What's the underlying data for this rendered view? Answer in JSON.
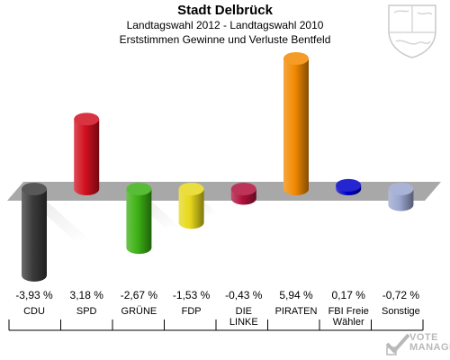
{
  "header": {
    "title": "Stadt Delbrück",
    "subtitle1": "Landtagswahl 2012 - Landtagswahl 2010",
    "subtitle2": "Erststimmen Gewinne und Verluste Bentfeld"
  },
  "branding": {
    "coat_of_arms_icon": "nrw-coat-of-arms-icon",
    "logo_line1": "VOTE",
    "logo_line2": "MANAGER"
  },
  "chart_data": {
    "type": "bar",
    "title": "Stadt Delbrück",
    "categories": [
      "CDU",
      "SPD",
      "GRÜNE",
      "FDP",
      "DIE LINKE",
      "PIRATEN",
      "FBI Freie Wähler",
      "Sonstige"
    ],
    "category_lines": [
      [
        "CDU"
      ],
      [
        "SPD"
      ],
      [
        "GRÜNE"
      ],
      [
        "FDP"
      ],
      [
        "DIE",
        "LINKE"
      ],
      [
        "PIRATEN"
      ],
      [
        "FBI Freie",
        "Wähler"
      ],
      [
        "Sonstige"
      ]
    ],
    "values": [
      -3.93,
      3.18,
      -2.67,
      -1.53,
      -0.43,
      5.94,
      0.17,
      -0.72
    ],
    "value_labels": [
      "-3,93 %",
      "3,18 %",
      "-2,67 %",
      "-1,53 %",
      "-0,43 %",
      "5,94 %",
      "0,17 %",
      "-0,72 %"
    ],
    "colors": [
      "#3a3a3a",
      "#d10f1f",
      "#3cb014",
      "#e6d81c",
      "#b0113c",
      "#f28a00",
      "#0000c8",
      "#9aa6cf"
    ],
    "ylim": [
      -5.94,
      5.94
    ],
    "baseline_band_color": "#a8a8a8"
  }
}
